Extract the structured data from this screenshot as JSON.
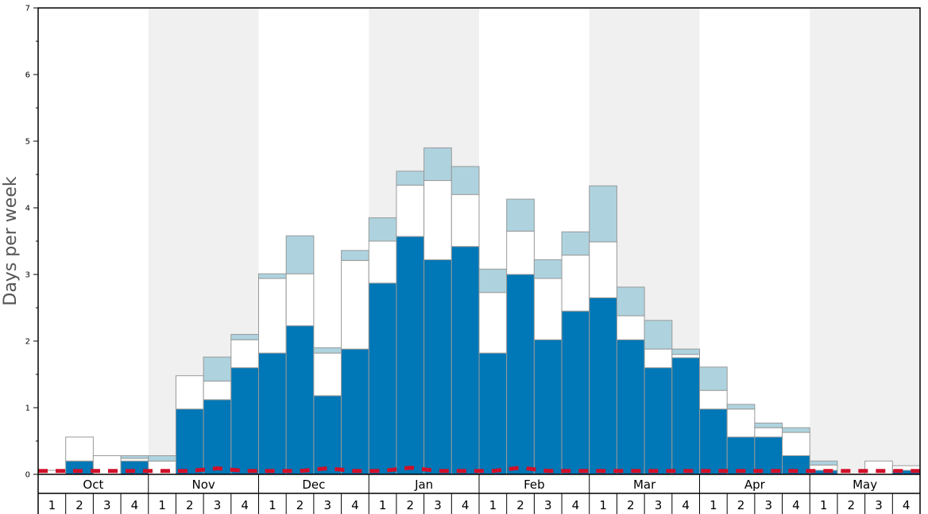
{
  "chart_data": {
    "type": "bar",
    "stacked": true,
    "ylabel": "Days per week",
    "ylim": [
      0,
      7
    ],
    "yticks": [
      "0",
      "1",
      "2",
      "3",
      "4",
      "5",
      "6",
      "7"
    ],
    "months": [
      "Oct",
      "Nov",
      "Dec",
      "Jan",
      "Feb",
      "Mar",
      "Apr",
      "May"
    ],
    "week_labels": [
      "1",
      "2",
      "3",
      "4"
    ],
    "shaded_months": [
      "Nov",
      "Jan",
      "Mar",
      "May"
    ],
    "colors": {
      "series1": "#0077b6",
      "series2": "#ffffff",
      "series3": "#aed3df",
      "dashed_line": "#d0102a",
      "shading": "#f0f0f0",
      "bar_border": "#999999"
    },
    "series": [
      {
        "values": [
          0.0,
          0.2,
          0.0,
          0.2,
          0.0,
          0.98,
          1.12,
          1.6,
          1.82,
          2.23,
          1.18,
          1.88,
          2.87,
          3.57,
          3.22,
          3.42,
          1.82,
          3.0,
          2.02,
          2.45,
          2.65,
          2.02,
          1.6,
          1.75,
          0.98,
          0.56,
          0.56,
          0.28,
          0.06,
          0.0,
          0.0,
          0.06
        ]
      },
      {
        "values": [
          0.06,
          0.36,
          0.28,
          0.04,
          0.2,
          0.5,
          0.28,
          0.42,
          1.12,
          0.78,
          0.64,
          1.33,
          0.63,
          0.77,
          1.19,
          0.78,
          0.91,
          0.65,
          0.92,
          0.84,
          0.84,
          0.36,
          0.28,
          0.05,
          0.28,
          0.42,
          0.14,
          0.35,
          0.08,
          0.0,
          0.2,
          0.07
        ]
      },
      {
        "values": [
          0.0,
          0.0,
          0.0,
          0.04,
          0.08,
          0.0,
          0.36,
          0.08,
          0.07,
          0.57,
          0.08,
          0.15,
          0.35,
          0.21,
          0.49,
          0.42,
          0.35,
          0.48,
          0.28,
          0.35,
          0.84,
          0.43,
          0.43,
          0.08,
          0.35,
          0.07,
          0.07,
          0.07,
          0.06,
          0.0,
          0.0,
          0.0
        ]
      }
    ],
    "dashed_line_values": [
      0.05,
      0.05,
      0.05,
      0.05,
      0.05,
      0.05,
      0.09,
      0.05,
      0.05,
      0.05,
      0.09,
      0.05,
      0.05,
      0.1,
      0.05,
      0.05,
      0.05,
      0.1,
      0.05,
      0.05,
      0.05,
      0.05,
      0.05,
      0.05,
      0.05,
      0.05,
      0.05,
      0.05,
      0.05,
      0.05,
      0.05,
      0.05
    ]
  }
}
